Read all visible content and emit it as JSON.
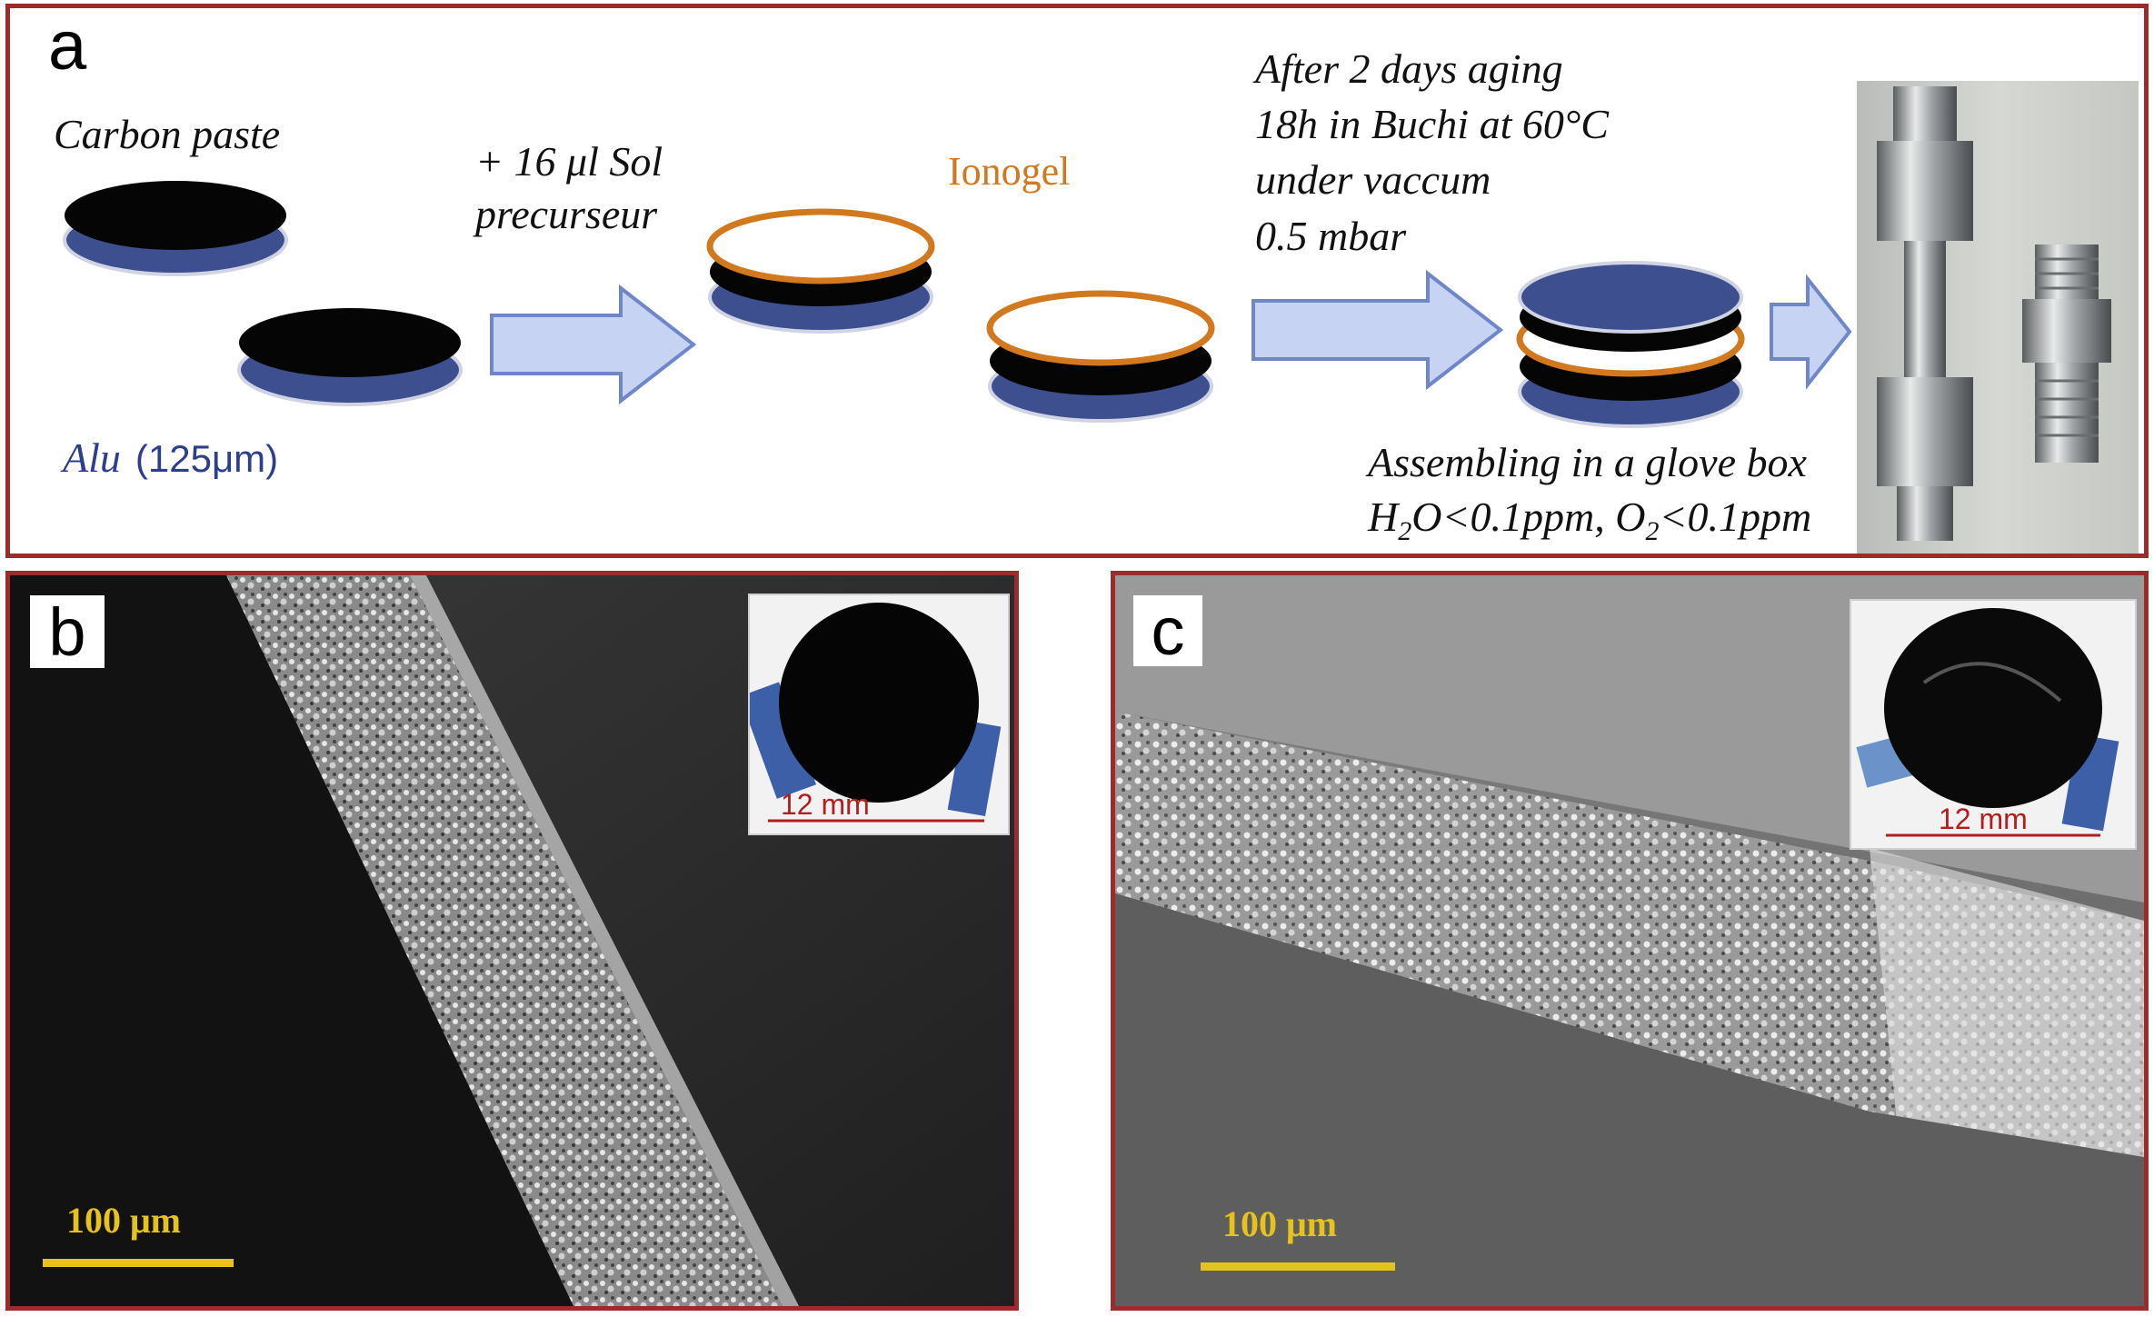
{
  "panel_a": {
    "letter": "a",
    "carbon_paste": "Carbon paste",
    "alu_label": "Alu",
    "alu_thickness": "(125μm)",
    "sol_line1": "+ 16 μl Sol",
    "sol_line2": "precurseur",
    "ionogel": "Ionogel",
    "aging_line1": "After 2 days aging",
    "aging_line2": "18h in Buchi at 60°C",
    "aging_line3": "under vaccum",
    "aging_line4": "0.5 mbar",
    "assembly_line1": "Assembling in a glove box",
    "assembly_h2o_prefix": "H",
    "assembly_h2o_sub": "2",
    "assembly_h2o_rest": "O<0.1ppm, O",
    "assembly_o2_sub": "2",
    "assembly_o2_rest": "<0.1ppm"
  },
  "panel_b": {
    "letter": "b",
    "scale_bar": "100 μm",
    "inset_scale": "12 mm"
  },
  "panel_c": {
    "letter": "c",
    "scale_bar": "100 μm",
    "inset_scale": "12 mm"
  },
  "colors": {
    "frame": "#9b2c2c",
    "aluminium": "#3d4f8f",
    "carbon": "#050505",
    "ionogel": "#d2781e",
    "arrow_fill": "#c7d3f3",
    "arrow_stroke": "#6f86c9",
    "scale_bar": "#e7c21a"
  }
}
